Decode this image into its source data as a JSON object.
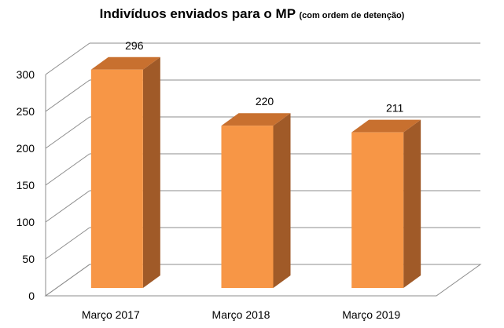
{
  "chart_data": {
    "type": "bar",
    "title": "Indivíduos enviados para o MP",
    "subtitle": "(com ordem de detenção)",
    "categories": [
      "Março 2017",
      "Março 2018",
      "Março 2019"
    ],
    "values": [
      296,
      220,
      211
    ],
    "data_labels": [
      "296",
      "220",
      "211"
    ],
    "ylim": [
      0,
      300
    ],
    "yticks": [
      0,
      50,
      100,
      150,
      200,
      250,
      300
    ],
    "xlabel": "",
    "ylabel": "",
    "grid": true,
    "style": "3d",
    "colors": {
      "front": "#F79646",
      "side": "#A05A28",
      "top": "#C8702F",
      "grid": "#8C8C8C"
    }
  }
}
